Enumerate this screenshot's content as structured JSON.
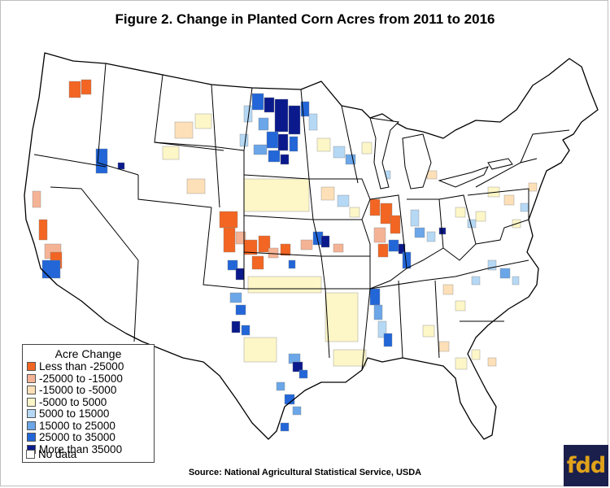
{
  "title": "Figure 2. Change in Planted Corn Acres from 2011 to 2016",
  "legend": {
    "title": "Acre Change",
    "items": [
      {
        "label": "Less than -25000",
        "color": "#f26522"
      },
      {
        "label": "-25000 to -15000",
        "color": "#f5b395"
      },
      {
        "label": "-15000 to -5000",
        "color": "#fde0b8"
      },
      {
        "label": "-5000 to 5000",
        "color": "#fdf7c8"
      },
      {
        "label": "5000 to 15000",
        "color": "#b5d8f5"
      },
      {
        "label": "15000 to 25000",
        "color": "#6aa6e8"
      },
      {
        "label": "25000 to 35000",
        "color": "#2266d8"
      },
      {
        "label": "More than 35000",
        "color": "#0a1a8c"
      },
      {
        "label": "No data",
        "color": "#ffffff"
      }
    ]
  },
  "source": "Source:  National Agricultural Statistical Service, USDA",
  "logo": "fdd"
}
